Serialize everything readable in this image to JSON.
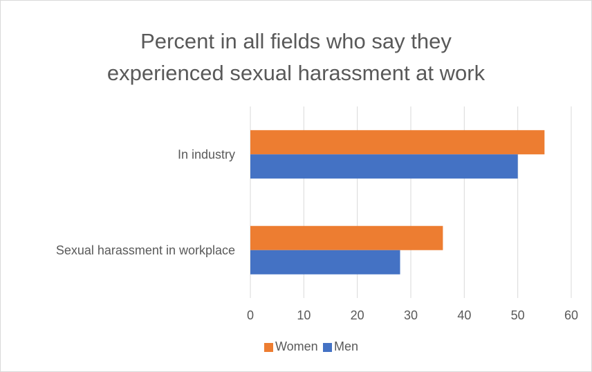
{
  "chart_data": {
    "type": "bar",
    "orientation": "horizontal",
    "title_lines": [
      "Percent in all fields who say they",
      "experienced sexual harassment at work"
    ],
    "categories": [
      "Sexual harassment in workplace",
      "In industry"
    ],
    "series": [
      {
        "name": "Women",
        "values": [
          36,
          55
        ],
        "color": "#ed7d31"
      },
      {
        "name": "Men",
        "values": [
          28,
          50
        ],
        "color": "#4472c4"
      }
    ],
    "xlim": [
      0,
      60
    ],
    "x_ticks": [
      0,
      10,
      20,
      30,
      40,
      50,
      60
    ],
    "grid": true,
    "legend_position": "bottom"
  }
}
